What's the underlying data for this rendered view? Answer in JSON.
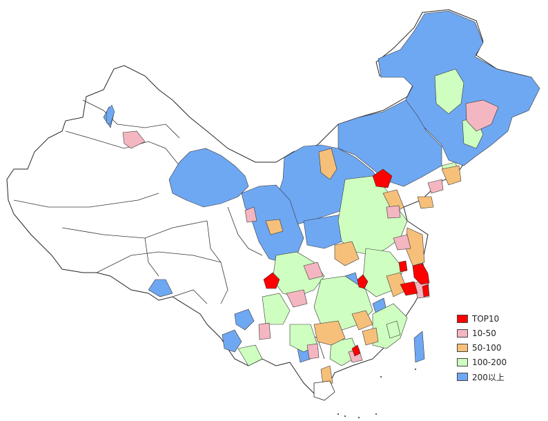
{
  "legend": {
    "items": [
      {
        "label": "TOP10",
        "color": "#ff0000"
      },
      {
        "label": "10-50",
        "color": "#f4b6c1"
      },
      {
        "label": "50-100",
        "color": "#f6c07a"
      },
      {
        "label": "100-200",
        "color": "#cfffc0"
      },
      {
        "label": "200以上",
        "color": "#6fa8f2"
      }
    ]
  },
  "colors": {
    "outline": "#222222",
    "blank": "#ffffff"
  }
}
